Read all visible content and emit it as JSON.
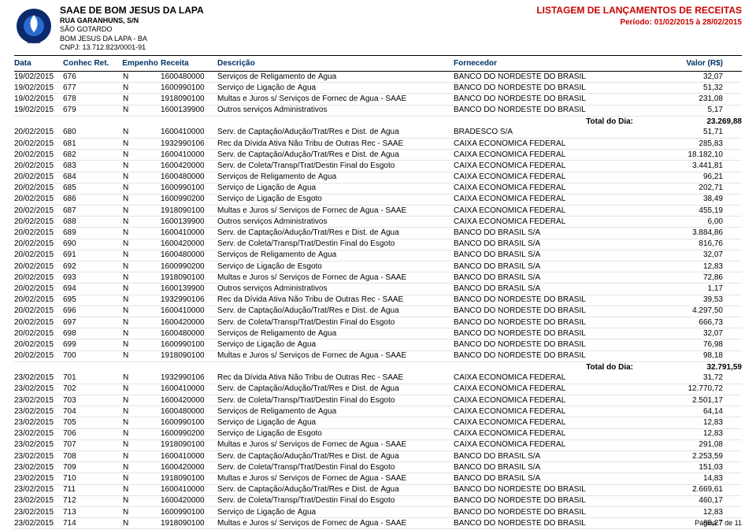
{
  "org": {
    "name": "SAAE DE BOM JESUS DA LAPA",
    "addr1": "RUA GARANHUNS, S/N",
    "addr2": "SÃO GOTARDO",
    "addr3": "BOM JESUS DA LAPA - BA",
    "cnpj_label": "CNPJ:",
    "cnpj": "13.712.823/0001-91"
  },
  "header": {
    "title": "LISTAGEM DE LANÇAMENTOS DE RECEITAS",
    "periodo_label": "Período:",
    "periodo": "01/02/2015 à 28/02/2015"
  },
  "columns": {
    "data": "Data",
    "conhec": "Conhec Ret.",
    "empenho": "Empenho",
    "receita": "Receita",
    "descricao": "Descrição",
    "fornecedor": "Fornecedor",
    "valor": "Valor (R$)"
  },
  "groups": [
    {
      "rows": [
        {
          "data": "19/02/2015",
          "conhec": "676",
          "emp": "N",
          "rec": "1600480000",
          "desc": "Serviços de Religamento de Água",
          "forn": "BANCO DO NORDESTE DO BRASIL",
          "val": "32,07"
        },
        {
          "data": "19/02/2015",
          "conhec": "677",
          "emp": "N",
          "rec": "1600990100",
          "desc": "Serviço de Ligação de Água",
          "forn": "BANCO DO NORDESTE DO BRASIL",
          "val": "51,32"
        },
        {
          "data": "19/02/2015",
          "conhec": "678",
          "emp": "N",
          "rec": "1918090100",
          "desc": "Multas e Juros s/ Serviços de Fornec de Água - SAAE",
          "forn": "BANCO DO NORDESTE DO BRASIL",
          "val": "231,08"
        },
        {
          "data": "19/02/2015",
          "conhec": "679",
          "emp": "N",
          "rec": "1600139900",
          "desc": "Outros serviços Administrativos",
          "forn": "BANCO DO NORDESTE DO BRASIL",
          "val": "5,17"
        }
      ],
      "total_label": "Total do Dia:",
      "total": "23.269,88"
    },
    {
      "rows": [
        {
          "data": "20/02/2015",
          "conhec": "680",
          "emp": "N",
          "rec": "1600410000",
          "desc": "Serv. de Captação/Adução/Trat/Res e Dist. de Água",
          "forn": "BRADESCO S/A",
          "val": "51,71"
        },
        {
          "data": "20/02/2015",
          "conhec": "681",
          "emp": "N",
          "rec": "1932990106",
          "desc": "Rec da Dívida Ativa Não Tribu de Outras Rec - SAAE",
          "forn": "CAIXA ECONÔMICA FEDERAL",
          "val": "285,83"
        },
        {
          "data": "20/02/2015",
          "conhec": "682",
          "emp": "N",
          "rec": "1600410000",
          "desc": "Serv. de Captação/Adução/Trat/Res e Dist. de Água",
          "forn": "CAIXA ECONÔMICA FEDERAL",
          "val": "18.182,10"
        },
        {
          "data": "20/02/2015",
          "conhec": "683",
          "emp": "N",
          "rec": "1600420000",
          "desc": "Serv. de Coleta/Transp/Trat/Destin Final do Esgoto",
          "forn": "CAIXA ECONÔMICA FEDERAL",
          "val": "3.441,81"
        },
        {
          "data": "20/02/2015",
          "conhec": "684",
          "emp": "N",
          "rec": "1600480000",
          "desc": "Serviços de Religamento de Água",
          "forn": "CAIXA ECONÔMICA FEDERAL",
          "val": "96,21"
        },
        {
          "data": "20/02/2015",
          "conhec": "685",
          "emp": "N",
          "rec": "1600990100",
          "desc": "Serviço de Ligação de Água",
          "forn": "CAIXA ECONÔMICA FEDERAL",
          "val": "202,71"
        },
        {
          "data": "20/02/2015",
          "conhec": "686",
          "emp": "N",
          "rec": "1600990200",
          "desc": "Serviço de Ligação de Esgoto",
          "forn": "CAIXA ECONÔMICA FEDERAL",
          "val": "38,49"
        },
        {
          "data": "20/02/2015",
          "conhec": "687",
          "emp": "N",
          "rec": "1918090100",
          "desc": "Multas e Juros s/ Serviços de Fornec de Água - SAAE",
          "forn": "CAIXA ECONÔMICA FEDERAL",
          "val": "455,19"
        },
        {
          "data": "20/02/2015",
          "conhec": "688",
          "emp": "N",
          "rec": "1600139900",
          "desc": "Outros serviços Administrativos",
          "forn": "CAIXA ECONÔMICA FEDERAL",
          "val": "6,00"
        },
        {
          "data": "20/02/2015",
          "conhec": "689",
          "emp": "N",
          "rec": "1600410000",
          "desc": "Serv. de Captação/Adução/Trat/Res e Dist. de Água",
          "forn": "BANCO DO BRASIL S/A",
          "val": "3.884,86"
        },
        {
          "data": "20/02/2015",
          "conhec": "690",
          "emp": "N",
          "rec": "1600420000",
          "desc": "Serv. de Coleta/Transp/Trat/Destin Final do Esgoto",
          "forn": "BANCO DO BRASIL S/A",
          "val": "816,76"
        },
        {
          "data": "20/02/2015",
          "conhec": "691",
          "emp": "N",
          "rec": "1600480000",
          "desc": "Serviços de Religamento de Água",
          "forn": "BANCO DO BRASIL S/A",
          "val": "32,07"
        },
        {
          "data": "20/02/2015",
          "conhec": "692",
          "emp": "N",
          "rec": "1600990200",
          "desc": "Serviço de Ligação de Esgoto",
          "forn": "BANCO DO BRASIL S/A",
          "val": "12,83"
        },
        {
          "data": "20/02/2015",
          "conhec": "693",
          "emp": "N",
          "rec": "1918090100",
          "desc": "Multas e Juros s/ Serviços de Fornec de Água - SAAE",
          "forn": "BANCO DO BRASIL S/A",
          "val": "72,86"
        },
        {
          "data": "20/02/2015",
          "conhec": "694",
          "emp": "N",
          "rec": "1600139900",
          "desc": "Outros serviços Administrativos",
          "forn": "BANCO DO BRASIL S/A",
          "val": "1,17"
        },
        {
          "data": "20/02/2015",
          "conhec": "695",
          "emp": "N",
          "rec": "1932990106",
          "desc": "Rec da Dívida Ativa Não Tribu de Outras Rec - SAAE",
          "forn": "BANCO DO NORDESTE DO BRASIL",
          "val": "39,53"
        },
        {
          "data": "20/02/2015",
          "conhec": "696",
          "emp": "N",
          "rec": "1600410000",
          "desc": "Serv. de Captação/Adução/Trat/Res e Dist. de Água",
          "forn": "BANCO DO NORDESTE DO BRASIL",
          "val": "4.297,50"
        },
        {
          "data": "20/02/2015",
          "conhec": "697",
          "emp": "N",
          "rec": "1600420000",
          "desc": "Serv. de Coleta/Transp/Trat/Destin Final do Esgoto",
          "forn": "BANCO DO NORDESTE DO BRASIL",
          "val": "666,73"
        },
        {
          "data": "20/02/2015",
          "conhec": "698",
          "emp": "N",
          "rec": "1600480000",
          "desc": "Serviços de Religamento de Água",
          "forn": "BANCO DO NORDESTE DO BRASIL",
          "val": "32,07"
        },
        {
          "data": "20/02/2015",
          "conhec": "699",
          "emp": "N",
          "rec": "1600990100",
          "desc": "Serviço de Ligação de Água",
          "forn": "BANCO DO NORDESTE DO BRASIL",
          "val": "76,98"
        },
        {
          "data": "20/02/2015",
          "conhec": "700",
          "emp": "N",
          "rec": "1918090100",
          "desc": "Multas e Juros s/ Serviços de Fornec de Água - SAAE",
          "forn": "BANCO DO NORDESTE DO BRASIL",
          "val": "98,18"
        }
      ],
      "total_label": "Total do Dia:",
      "total": "32.791,59"
    },
    {
      "rows": [
        {
          "data": "23/02/2015",
          "conhec": "701",
          "emp": "N",
          "rec": "1932990106",
          "desc": "Rec da Dívida Ativa Não Tribu de Outras Rec - SAAE",
          "forn": "CAIXA ECONÔMICA FEDERAL",
          "val": "31,72"
        },
        {
          "data": "23/02/2015",
          "conhec": "702",
          "emp": "N",
          "rec": "1600410000",
          "desc": "Serv. de Captação/Adução/Trat/Res e Dist. de Água",
          "forn": "CAIXA ECONÔMICA FEDERAL",
          "val": "12.770,72"
        },
        {
          "data": "23/02/2015",
          "conhec": "703",
          "emp": "N",
          "rec": "1600420000",
          "desc": "Serv. de Coleta/Transp/Trat/Destin Final do Esgoto",
          "forn": "CAIXA ECONÔMICA FEDERAL",
          "val": "2.501,17"
        },
        {
          "data": "23/02/2015",
          "conhec": "704",
          "emp": "N",
          "rec": "1600480000",
          "desc": "Serviços de Religamento de Água",
          "forn": "CAIXA ECONÔMICA FEDERAL",
          "val": "64,14"
        },
        {
          "data": "23/02/2015",
          "conhec": "705",
          "emp": "N",
          "rec": "1600990100",
          "desc": "Serviço de Ligação de Água",
          "forn": "CAIXA ECONÔMICA FEDERAL",
          "val": "12,83"
        },
        {
          "data": "23/02/2015",
          "conhec": "706",
          "emp": "N",
          "rec": "1600990200",
          "desc": "Serviço de Ligação de Esgoto",
          "forn": "CAIXA ECONÔMICA FEDERAL",
          "val": "12,83"
        },
        {
          "data": "23/02/2015",
          "conhec": "707",
          "emp": "N",
          "rec": "1918090100",
          "desc": "Multas e Juros s/ Serviços de Fornec de Água - SAAE",
          "forn": "CAIXA ECONÔMICA FEDERAL",
          "val": "291,08"
        },
        {
          "data": "23/02/2015",
          "conhec": "708",
          "emp": "N",
          "rec": "1600410000",
          "desc": "Serv. de Captação/Adução/Trat/Res e Dist. de Água",
          "forn": "BANCO DO BRASIL S/A",
          "val": "2.253,59"
        },
        {
          "data": "23/02/2015",
          "conhec": "709",
          "emp": "N",
          "rec": "1600420000",
          "desc": "Serv. de Coleta/Transp/Trat/Destin Final do Esgoto",
          "forn": "BANCO DO BRASIL S/A",
          "val": "151,03"
        },
        {
          "data": "23/02/2015",
          "conhec": "710",
          "emp": "N",
          "rec": "1918090100",
          "desc": "Multas e Juros s/ Serviços de Fornec de Água - SAAE",
          "forn": "BANCO DO BRASIL S/A",
          "val": "14,83"
        },
        {
          "data": "23/02/2015",
          "conhec": "711",
          "emp": "N",
          "rec": "1600410000",
          "desc": "Serv. de Captação/Adução/Trat/Res e Dist. de Água",
          "forn": "BANCO DO NORDESTE DO BRASIL",
          "val": "2.669,61"
        },
        {
          "data": "23/02/2015",
          "conhec": "712",
          "emp": "N",
          "rec": "1600420000",
          "desc": "Serv. de Coleta/Transp/Trat/Destin Final do Esgoto",
          "forn": "BANCO DO NORDESTE DO BRASIL",
          "val": "460,17"
        },
        {
          "data": "23/02/2015",
          "conhec": "713",
          "emp": "N",
          "rec": "1600990100",
          "desc": "Serviço de Ligação de Água",
          "forn": "BANCO DO NORDESTE DO BRASIL",
          "val": "12,83"
        },
        {
          "data": "23/02/2015",
          "conhec": "714",
          "emp": "N",
          "rec": "1918090100",
          "desc": "Multas e Juros s/ Serviços de Fornec de Água - SAAE",
          "forn": "BANCO DO NORDESTE DO BRASIL",
          "val": "86,27"
        }
      ],
      "total_label": null,
      "total": null
    }
  ],
  "footer": {
    "page": "Página 7 de 11"
  },
  "colors": {
    "title_red": "#cc0000",
    "header_blue": "#003366",
    "row_sep": "#e4e4e4",
    "logo_outer": "#0a2a6b",
    "logo_inner": "#2a6bd1"
  }
}
